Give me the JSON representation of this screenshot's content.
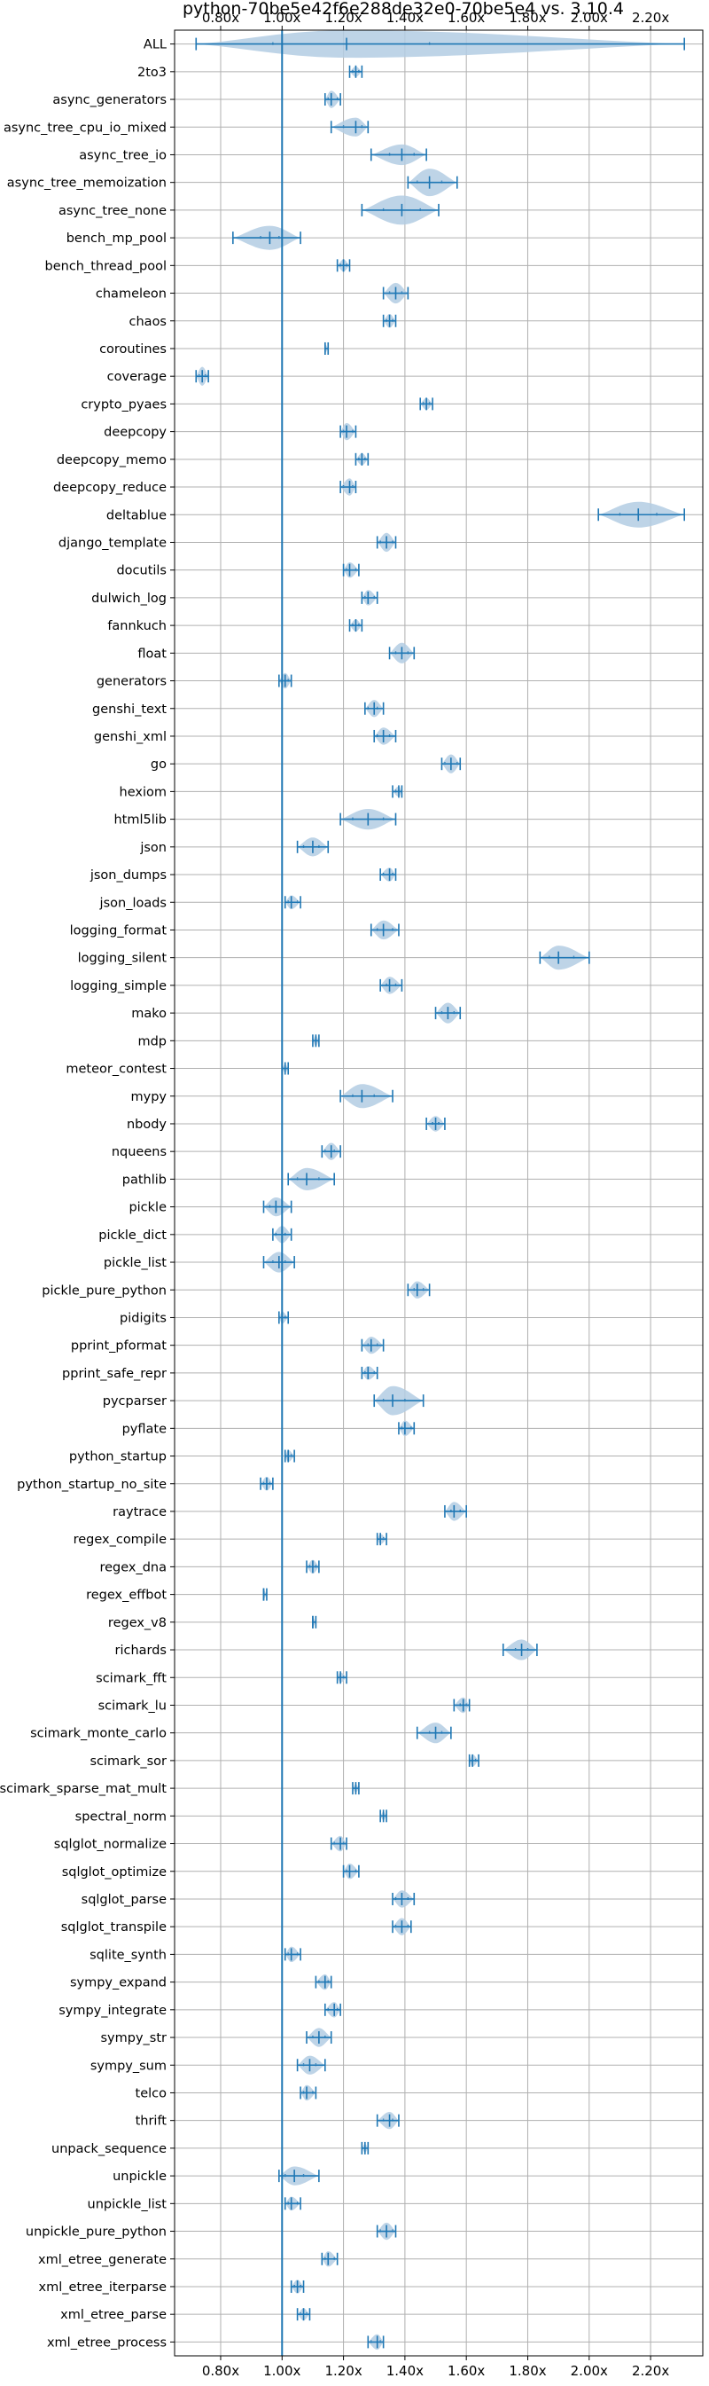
{
  "chart_data": {
    "type": "violin",
    "title": "python-70be5e42f6e288de32e0-70be5e4 vs. 3.10.4",
    "xlabel": "",
    "ylabel": "",
    "orientation": "horizontal",
    "xlim": [
      0.65,
      2.37
    ],
    "x_tick_values": [
      0.8,
      1.0,
      1.2,
      1.4,
      1.6,
      1.8,
      2.0,
      2.2
    ],
    "x_tick_labels": [
      "0.80x",
      "1.00x",
      "1.20x",
      "1.40x",
      "1.60x",
      "1.80x",
      "2.00x",
      "2.20x"
    ],
    "x_ticks_top_and_bottom": true,
    "reference_line_x": 1.0,
    "grid": true,
    "colors": {
      "line": "#1f77b4",
      "violin_fill": "#b3cde3",
      "grid": "#b0b0b0",
      "axis": "#000000"
    },
    "categories": [
      "ALL",
      "2to3",
      "async_generators",
      "async_tree_cpu_io_mixed",
      "async_tree_io",
      "async_tree_memoization",
      "async_tree_none",
      "bench_mp_pool",
      "bench_thread_pool",
      "chameleon",
      "chaos",
      "coroutines",
      "coverage",
      "crypto_pyaes",
      "deepcopy",
      "deepcopy_memo",
      "deepcopy_reduce",
      "deltablue",
      "django_template",
      "docutils",
      "dulwich_log",
      "fannkuch",
      "float",
      "generators",
      "genshi_text",
      "genshi_xml",
      "go",
      "hexiom",
      "html5lib",
      "json",
      "json_dumps",
      "json_loads",
      "logging_format",
      "logging_silent",
      "logging_simple",
      "mako",
      "mdp",
      "meteor_contest",
      "mypy",
      "nbody",
      "nqueens",
      "pathlib",
      "pickle",
      "pickle_dict",
      "pickle_list",
      "pickle_pure_python",
      "pidigits",
      "pprint_pformat",
      "pprint_safe_repr",
      "pycparser",
      "pyflate",
      "python_startup",
      "python_startup_no_site",
      "raytrace",
      "regex_compile",
      "regex_dna",
      "regex_effbot",
      "regex_v8",
      "richards",
      "scimark_fft",
      "scimark_lu",
      "scimark_monte_carlo",
      "scimark_sor",
      "scimark_sparse_mat_mult",
      "spectral_norm",
      "sqlglot_normalize",
      "sqlglot_optimize",
      "sqlglot_parse",
      "sqlglot_transpile",
      "sqlite_synth",
      "sympy_expand",
      "sympy_integrate",
      "sympy_str",
      "sympy_sum",
      "telco",
      "thrift",
      "unpack_sequence",
      "unpickle",
      "unpickle_list",
      "unpickle_pure_python",
      "xml_etree_generate",
      "xml_etree_iterparse",
      "xml_etree_parse",
      "xml_etree_process"
    ],
    "series": [
      {
        "min": 0.72,
        "max": 2.31,
        "median": 1.21,
        "q1": 0.97,
        "q3": 1.48,
        "width": 0.8
      },
      {
        "min": 1.22,
        "max": 1.26,
        "median": 1.24,
        "q1": 1.23,
        "q3": 1.25,
        "width": 0.3
      },
      {
        "min": 1.14,
        "max": 1.19,
        "median": 1.16,
        "q1": 1.15,
        "q3": 1.18,
        "width": 0.5
      },
      {
        "min": 1.16,
        "max": 1.28,
        "median": 1.24,
        "q1": 1.2,
        "q3": 1.26,
        "width": 0.55
      },
      {
        "min": 1.29,
        "max": 1.47,
        "median": 1.39,
        "q1": 1.35,
        "q3": 1.43,
        "width": 0.6
      },
      {
        "min": 1.41,
        "max": 1.57,
        "median": 1.48,
        "q1": 1.44,
        "q3": 1.52,
        "width": 0.8
      },
      {
        "min": 1.26,
        "max": 1.51,
        "median": 1.39,
        "q1": 1.33,
        "q3": 1.45,
        "width": 0.85
      },
      {
        "min": 0.84,
        "max": 1.06,
        "median": 0.96,
        "q1": 0.93,
        "q3": 0.99,
        "width": 0.7
      },
      {
        "min": 1.18,
        "max": 1.22,
        "median": 1.2,
        "q1": 1.19,
        "q3": 1.21,
        "width": 0.35
      },
      {
        "min": 1.33,
        "max": 1.41,
        "median": 1.37,
        "q1": 1.35,
        "q3": 1.39,
        "width": 0.6
      },
      {
        "min": 1.33,
        "max": 1.37,
        "median": 1.35,
        "q1": 1.34,
        "q3": 1.36,
        "width": 0.4
      },
      {
        "min": 1.14,
        "max": 1.15,
        "median": 1.14,
        "q1": 1.14,
        "q3": 1.15,
        "width": 0.25
      },
      {
        "min": 0.72,
        "max": 0.76,
        "median": 0.74,
        "q1": 0.73,
        "q3": 0.75,
        "width": 0.55
      },
      {
        "min": 1.45,
        "max": 1.49,
        "median": 1.47,
        "q1": 1.46,
        "q3": 1.48,
        "width": 0.35
      },
      {
        "min": 1.19,
        "max": 1.24,
        "median": 1.21,
        "q1": 1.2,
        "q3": 1.23,
        "width": 0.5
      },
      {
        "min": 1.24,
        "max": 1.28,
        "median": 1.26,
        "q1": 1.25,
        "q3": 1.27,
        "width": 0.35
      },
      {
        "min": 1.19,
        "max": 1.24,
        "median": 1.22,
        "q1": 1.2,
        "q3": 1.23,
        "width": 0.5
      },
      {
        "min": 2.03,
        "max": 2.31,
        "median": 2.16,
        "q1": 2.1,
        "q3": 2.22,
        "width": 0.75
      },
      {
        "min": 1.31,
        "max": 1.37,
        "median": 1.34,
        "q1": 1.32,
        "q3": 1.36,
        "width": 0.55
      },
      {
        "min": 1.2,
        "max": 1.25,
        "median": 1.22,
        "q1": 1.21,
        "q3": 1.24,
        "width": 0.45
      },
      {
        "min": 1.26,
        "max": 1.31,
        "median": 1.28,
        "q1": 1.27,
        "q3": 1.3,
        "width": 0.45
      },
      {
        "min": 1.22,
        "max": 1.26,
        "median": 1.24,
        "q1": 1.23,
        "q3": 1.25,
        "width": 0.35
      },
      {
        "min": 1.35,
        "max": 1.43,
        "median": 1.39,
        "q1": 1.37,
        "q3": 1.41,
        "width": 0.6
      },
      {
        "min": 0.99,
        "max": 1.03,
        "median": 1.01,
        "q1": 1.0,
        "q3": 1.02,
        "width": 0.45
      },
      {
        "min": 1.27,
        "max": 1.33,
        "median": 1.3,
        "q1": 1.28,
        "q3": 1.31,
        "width": 0.5
      },
      {
        "min": 1.3,
        "max": 1.37,
        "median": 1.33,
        "q1": 1.31,
        "q3": 1.35,
        "width": 0.5
      },
      {
        "min": 1.52,
        "max": 1.58,
        "median": 1.55,
        "q1": 1.53,
        "q3": 1.57,
        "width": 0.55
      },
      {
        "min": 1.36,
        "max": 1.39,
        "median": 1.38,
        "q1": 1.37,
        "q3": 1.38,
        "width": 0.3
      },
      {
        "min": 1.19,
        "max": 1.37,
        "median": 1.28,
        "q1": 1.23,
        "q3": 1.33,
        "width": 0.6
      },
      {
        "min": 1.05,
        "max": 1.15,
        "median": 1.1,
        "q1": 1.07,
        "q3": 1.12,
        "width": 0.55
      },
      {
        "min": 1.32,
        "max": 1.37,
        "median": 1.35,
        "q1": 1.33,
        "q3": 1.36,
        "width": 0.4
      },
      {
        "min": 1.01,
        "max": 1.06,
        "median": 1.03,
        "q1": 1.02,
        "q3": 1.05,
        "width": 0.4
      },
      {
        "min": 1.29,
        "max": 1.38,
        "median": 1.33,
        "q1": 1.31,
        "q3": 1.36,
        "width": 0.55
      },
      {
        "min": 1.84,
        "max": 2.0,
        "median": 1.9,
        "q1": 1.87,
        "q3": 1.95,
        "width": 0.7
      },
      {
        "min": 1.32,
        "max": 1.39,
        "median": 1.35,
        "q1": 1.34,
        "q3": 1.37,
        "width": 0.5
      },
      {
        "min": 1.5,
        "max": 1.58,
        "median": 1.54,
        "q1": 1.52,
        "q3": 1.56,
        "width": 0.6
      },
      {
        "min": 1.1,
        "max": 1.12,
        "median": 1.11,
        "q1": 1.1,
        "q3": 1.11,
        "width": 0.3
      },
      {
        "min": 1.0,
        "max": 1.02,
        "median": 1.01,
        "q1": 1.0,
        "q3": 1.01,
        "width": 0.25
      },
      {
        "min": 1.19,
        "max": 1.36,
        "median": 1.26,
        "q1": 1.23,
        "q3": 1.3,
        "width": 0.7
      },
      {
        "min": 1.47,
        "max": 1.53,
        "median": 1.5,
        "q1": 1.49,
        "q3": 1.51,
        "width": 0.45
      },
      {
        "min": 1.13,
        "max": 1.19,
        "median": 1.16,
        "q1": 1.14,
        "q3": 1.17,
        "width": 0.5
      },
      {
        "min": 1.02,
        "max": 1.17,
        "median": 1.08,
        "q1": 1.05,
        "q3": 1.12,
        "width": 0.65
      },
      {
        "min": 0.94,
        "max": 1.03,
        "median": 0.98,
        "q1": 0.96,
        "q3": 1.0,
        "width": 0.55
      },
      {
        "min": 0.97,
        "max": 1.03,
        "median": 1.0,
        "q1": 0.98,
        "q3": 1.01,
        "width": 0.5
      },
      {
        "min": 0.94,
        "max": 1.04,
        "median": 0.99,
        "q1": 0.97,
        "q3": 1.01,
        "width": 0.6
      },
      {
        "min": 1.41,
        "max": 1.48,
        "median": 1.44,
        "q1": 1.43,
        "q3": 1.46,
        "width": 0.5
      },
      {
        "min": 0.99,
        "max": 1.02,
        "median": 1.0,
        "q1": 1.0,
        "q3": 1.01,
        "width": 0.35
      },
      {
        "min": 1.26,
        "max": 1.33,
        "median": 1.29,
        "q1": 1.28,
        "q3": 1.31,
        "width": 0.5
      },
      {
        "min": 1.26,
        "max": 1.31,
        "median": 1.28,
        "q1": 1.27,
        "q3": 1.3,
        "width": 0.4
      },
      {
        "min": 1.3,
        "max": 1.46,
        "median": 1.36,
        "q1": 1.33,
        "q3": 1.4,
        "width": 0.85
      },
      {
        "min": 1.38,
        "max": 1.43,
        "median": 1.4,
        "q1": 1.39,
        "q3": 1.42,
        "width": 0.45
      },
      {
        "min": 1.01,
        "max": 1.04,
        "median": 1.02,
        "q1": 1.02,
        "q3": 1.03,
        "width": 0.35
      },
      {
        "min": 0.93,
        "max": 0.97,
        "median": 0.95,
        "q1": 0.94,
        "q3": 0.96,
        "width": 0.4
      },
      {
        "min": 1.53,
        "max": 1.6,
        "median": 1.56,
        "q1": 1.55,
        "q3": 1.58,
        "width": 0.55
      },
      {
        "min": 1.31,
        "max": 1.34,
        "median": 1.32,
        "q1": 1.32,
        "q3": 1.33,
        "width": 0.3
      },
      {
        "min": 1.08,
        "max": 1.12,
        "median": 1.1,
        "q1": 1.09,
        "q3": 1.11,
        "width": 0.4
      },
      {
        "min": 0.94,
        "max": 0.95,
        "median": 0.94,
        "q1": 0.94,
        "q3": 0.95,
        "width": 0.25
      },
      {
        "min": 1.1,
        "max": 1.11,
        "median": 1.1,
        "q1": 1.1,
        "q3": 1.11,
        "width": 0.25
      },
      {
        "min": 1.72,
        "max": 1.83,
        "median": 1.78,
        "q1": 1.76,
        "q3": 1.8,
        "width": 0.6
      },
      {
        "min": 1.18,
        "max": 1.21,
        "median": 1.19,
        "q1": 1.19,
        "q3": 1.2,
        "width": 0.3
      },
      {
        "min": 1.56,
        "max": 1.61,
        "median": 1.59,
        "q1": 1.58,
        "q3": 1.6,
        "width": 0.45
      },
      {
        "min": 1.44,
        "max": 1.55,
        "median": 1.5,
        "q1": 1.48,
        "q3": 1.52,
        "width": 0.6
      },
      {
        "min": 1.61,
        "max": 1.64,
        "median": 1.62,
        "q1": 1.62,
        "q3": 1.63,
        "width": 0.35
      },
      {
        "min": 1.23,
        "max": 1.25,
        "median": 1.24,
        "q1": 1.24,
        "q3": 1.25,
        "width": 0.25
      },
      {
        "min": 1.32,
        "max": 1.34,
        "median": 1.33,
        "q1": 1.33,
        "q3": 1.34,
        "width": 0.25
      },
      {
        "min": 1.16,
        "max": 1.21,
        "median": 1.19,
        "q1": 1.17,
        "q3": 1.2,
        "width": 0.45
      },
      {
        "min": 1.2,
        "max": 1.25,
        "median": 1.22,
        "q1": 1.21,
        "q3": 1.24,
        "width": 0.45
      },
      {
        "min": 1.36,
        "max": 1.43,
        "median": 1.39,
        "q1": 1.37,
        "q3": 1.41,
        "width": 0.5
      },
      {
        "min": 1.36,
        "max": 1.42,
        "median": 1.39,
        "q1": 1.37,
        "q3": 1.41,
        "width": 0.5
      },
      {
        "min": 1.01,
        "max": 1.06,
        "median": 1.03,
        "q1": 1.02,
        "q3": 1.05,
        "width": 0.45
      },
      {
        "min": 1.11,
        "max": 1.16,
        "median": 1.14,
        "q1": 1.12,
        "q3": 1.15,
        "width": 0.45
      },
      {
        "min": 1.14,
        "max": 1.19,
        "median": 1.17,
        "q1": 1.15,
        "q3": 1.18,
        "width": 0.45
      },
      {
        "min": 1.08,
        "max": 1.16,
        "median": 1.12,
        "q1": 1.1,
        "q3": 1.14,
        "width": 0.55
      },
      {
        "min": 1.05,
        "max": 1.14,
        "median": 1.09,
        "q1": 1.07,
        "q3": 1.11,
        "width": 0.55
      },
      {
        "min": 1.06,
        "max": 1.11,
        "median": 1.08,
        "q1": 1.07,
        "q3": 1.1,
        "width": 0.45
      },
      {
        "min": 1.31,
        "max": 1.38,
        "median": 1.35,
        "q1": 1.33,
        "q3": 1.36,
        "width": 0.5
      },
      {
        "min": 1.26,
        "max": 1.28,
        "median": 1.27,
        "q1": 1.26,
        "q3": 1.27,
        "width": 0.25
      },
      {
        "min": 0.99,
        "max": 1.12,
        "median": 1.04,
        "q1": 1.01,
        "q3": 1.07,
        "width": 0.55
      },
      {
        "min": 1.01,
        "max": 1.06,
        "median": 1.03,
        "q1": 1.02,
        "q3": 1.05,
        "width": 0.4
      },
      {
        "min": 1.31,
        "max": 1.37,
        "median": 1.34,
        "q1": 1.32,
        "q3": 1.36,
        "width": 0.5
      },
      {
        "min": 1.13,
        "max": 1.18,
        "median": 1.15,
        "q1": 1.14,
        "q3": 1.17,
        "width": 0.45
      },
      {
        "min": 1.03,
        "max": 1.07,
        "median": 1.05,
        "q1": 1.04,
        "q3": 1.06,
        "width": 0.4
      },
      {
        "min": 1.05,
        "max": 1.09,
        "median": 1.07,
        "q1": 1.06,
        "q3": 1.08,
        "width": 0.35
      },
      {
        "min": 1.28,
        "max": 1.33,
        "median": 1.31,
        "q1": 1.29,
        "q3": 1.32,
        "width": 0.45
      }
    ]
  }
}
